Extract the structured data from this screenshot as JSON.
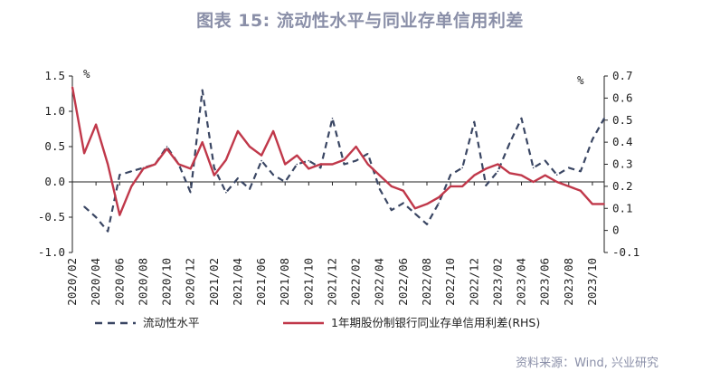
{
  "title": "图表 15: 流动性水平与同业存单信用利差",
  "source": "资料来源：Wind, 兴业研究",
  "chart_data": {
    "type": "line",
    "left_axis": {
      "unit": "%",
      "ylim": [
        -1.0,
        1.5
      ],
      "ticks": [
        -1.0,
        -0.5,
        0.0,
        0.5,
        1.0,
        1.5
      ],
      "tick_labels": [
        "-1.0",
        "-0.5",
        "0.0",
        "0.5",
        "1.0",
        "1.5"
      ]
    },
    "right_axis": {
      "unit": "%",
      "ylim": [
        -0.1,
        0.7
      ],
      "ticks": [
        -0.1,
        0,
        0.1,
        0.2,
        0.3,
        0.4,
        0.5,
        0.6,
        0.7
      ],
      "tick_labels": [
        "-0.1",
        "0",
        "0.1",
        "0.2",
        "0.3",
        "0.4",
        "0.5",
        "0.6",
        "0.7"
      ]
    },
    "x_axis": {
      "start": "2020/02",
      "end": "2023/11",
      "tick_labels": [
        "2020/02",
        "2020/04",
        "2020/06",
        "2020/08",
        "2020/10",
        "2020/12",
        "2021/02",
        "2021/04",
        "2021/06",
        "2021/08",
        "2021/10",
        "2021/12",
        "2022/02",
        "2022/04",
        "2022/06",
        "2022/08",
        "2022/10",
        "2022/12",
        "2023/02",
        "2023/04",
        "2023/06",
        "2023/08",
        "2023/10"
      ]
    },
    "series": [
      {
        "name": "流动性水平",
        "axis": "left",
        "style": "dashed",
        "color": "#3a4663",
        "x": [
          "2020/03",
          "2020/04",
          "2020/05",
          "2020/06",
          "2020/07",
          "2020/08",
          "2020/09",
          "2020/10",
          "2020/11",
          "2020/12",
          "2021/01",
          "2021/02",
          "2021/03",
          "2021/04",
          "2021/05",
          "2021/06",
          "2021/07",
          "2021/08",
          "2021/09",
          "2021/10",
          "2021/11",
          "2021/12",
          "2022/01",
          "2022/02",
          "2022/03",
          "2022/04",
          "2022/05",
          "2022/06",
          "2022/07",
          "2022/08",
          "2022/09",
          "2022/10",
          "2022/11",
          "2022/12",
          "2023/01",
          "2023/02",
          "2023/03",
          "2023/04",
          "2023/05",
          "2023/06",
          "2023/07",
          "2023/08",
          "2023/09",
          "2023/10",
          "2023/11"
        ],
        "y": [
          -0.35,
          -0.5,
          -0.7,
          0.1,
          0.15,
          0.2,
          0.25,
          0.5,
          0.25,
          -0.15,
          1.3,
          0.2,
          -0.15,
          0.05,
          -0.1,
          0.3,
          0.1,
          0.0,
          0.25,
          0.3,
          0.2,
          0.9,
          0.25,
          0.3,
          0.4,
          -0.1,
          -0.4,
          -0.3,
          -0.45,
          -0.6,
          -0.3,
          0.1,
          0.2,
          0.85,
          -0.05,
          0.15,
          0.55,
          0.9,
          0.2,
          0.3,
          0.1,
          0.2,
          0.15,
          0.6,
          0.9
        ]
      },
      {
        "name": "1年期股份制银行同业存单信用利差(RHS)",
        "axis": "right",
        "style": "solid",
        "color": "#c0384a",
        "x": [
          "2020/02",
          "2020/03",
          "2020/04",
          "2020/05",
          "2020/06",
          "2020/07",
          "2020/08",
          "2020/09",
          "2020/10",
          "2020/11",
          "2020/12",
          "2021/01",
          "2021/02",
          "2021/03",
          "2021/04",
          "2021/05",
          "2021/06",
          "2021/07",
          "2021/08",
          "2021/09",
          "2021/10",
          "2021/11",
          "2021/12",
          "2022/01",
          "2022/02",
          "2022/03",
          "2022/04",
          "2022/05",
          "2022/06",
          "2022/07",
          "2022/08",
          "2022/09",
          "2022/10",
          "2022/11",
          "2022/12",
          "2023/01",
          "2023/02",
          "2023/03",
          "2023/04",
          "2023/05",
          "2023/06",
          "2023/07",
          "2023/08",
          "2023/09",
          "2023/10",
          "2023/11"
        ],
        "y": [
          0.65,
          0.35,
          0.48,
          0.3,
          0.07,
          0.2,
          0.28,
          0.3,
          0.37,
          0.3,
          0.28,
          0.4,
          0.25,
          0.32,
          0.45,
          0.38,
          0.34,
          0.45,
          0.3,
          0.34,
          0.28,
          0.3,
          0.3,
          0.32,
          0.38,
          0.3,
          0.25,
          0.2,
          0.18,
          0.1,
          0.12,
          0.15,
          0.2,
          0.2,
          0.25,
          0.28,
          0.3,
          0.26,
          0.25,
          0.22,
          0.25,
          0.22,
          0.2,
          0.18,
          0.12,
          0.12
        ]
      }
    ]
  }
}
